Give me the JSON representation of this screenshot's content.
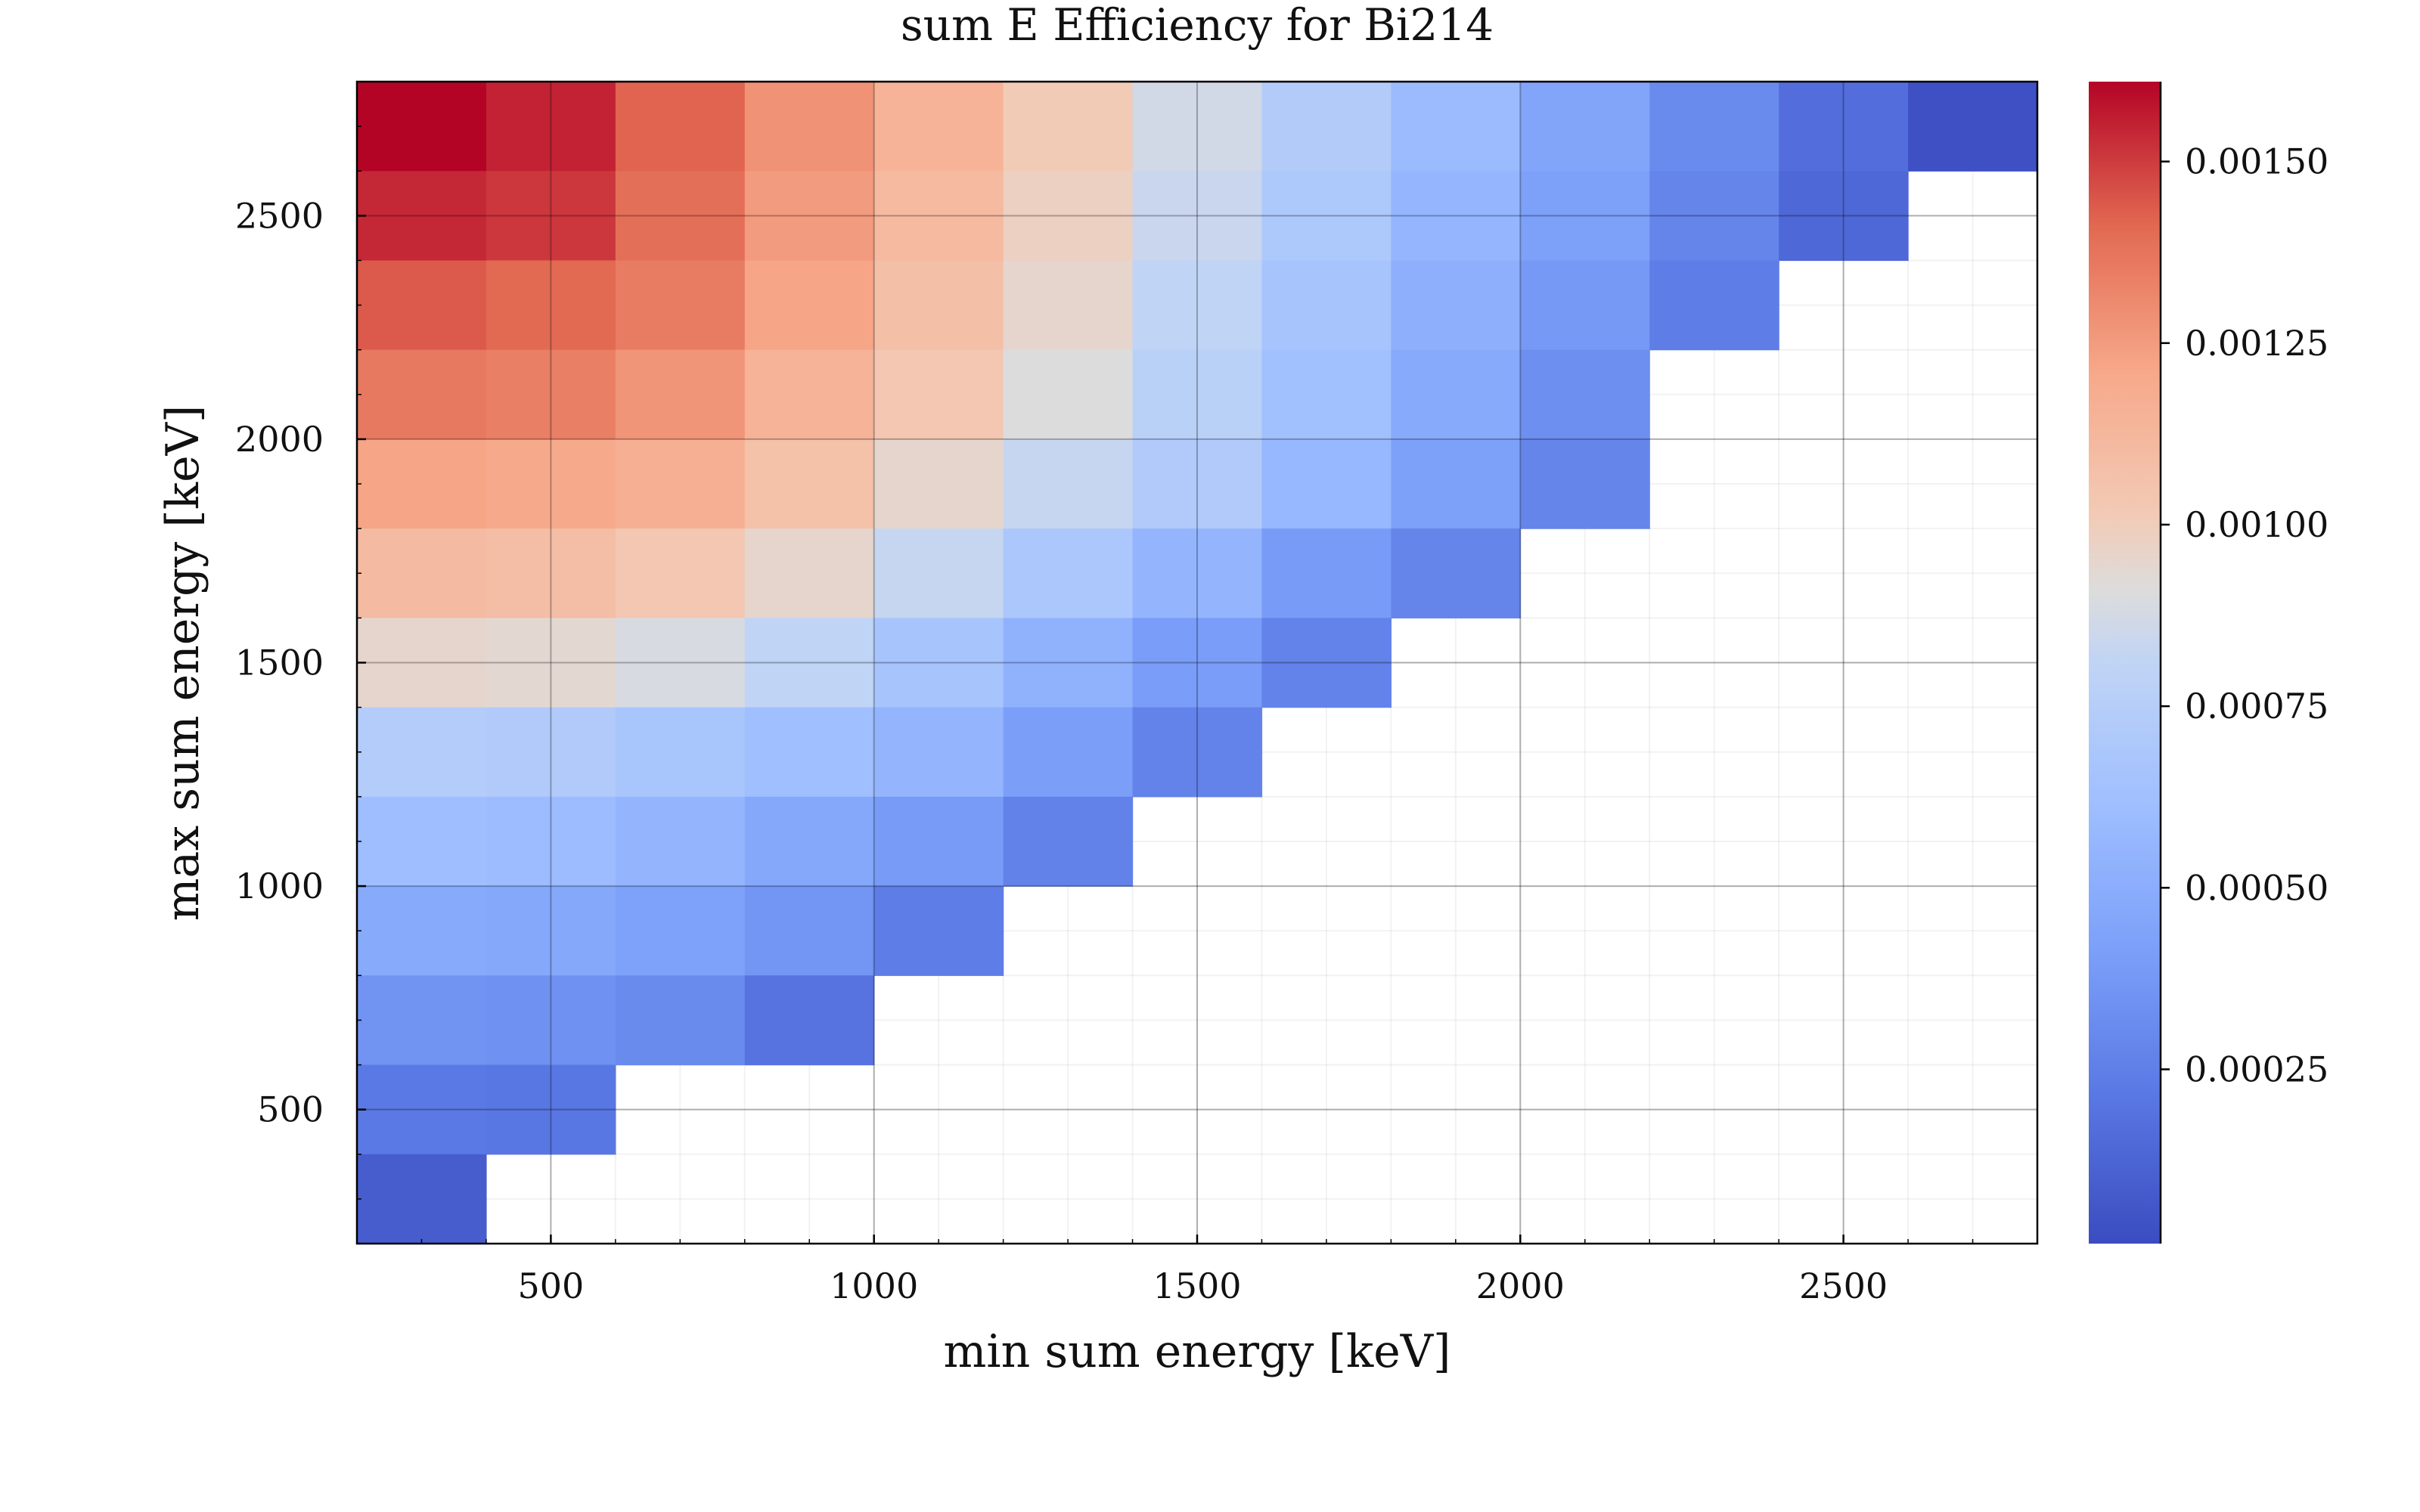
{
  "chart_data": {
    "type": "heatmap",
    "title": "sum E Efficiency for Bi214",
    "xlabel": "min sum energy [keV]",
    "ylabel": "max sum energy [keV]",
    "x_range": [
      200,
      2800
    ],
    "y_range": [
      200,
      2800
    ],
    "bin_width": 200,
    "x_ticks": [
      500,
      1000,
      1500,
      2000,
      2500
    ],
    "y_ticks": [
      500,
      1000,
      1500,
      2000,
      2500
    ],
    "grid": true,
    "colormap": "coolwarm",
    "colorbar": {
      "range": [
        1e-05,
        0.00161
      ],
      "ticks": [
        0.00025,
        0.0005,
        0.00075,
        0.001,
        0.00125,
        0.0015
      ],
      "tick_labels": [
        "0.00025",
        "0.00050",
        "0.00075",
        "0.00100",
        "0.00125",
        "0.00150"
      ],
      "position": "right"
    },
    "x_bin_starts": [
      200,
      400,
      600,
      800,
      1000,
      1200,
      1400,
      1600,
      1800,
      2000,
      2200,
      2400,
      2600
    ],
    "y_bin_starts": [
      2600,
      2400,
      2200,
      2000,
      1800,
      1600,
      1400,
      1200,
      1000,
      800,
      600,
      400,
      200
    ],
    "values": [
      [
        0.00161,
        0.00155,
        0.00142,
        0.00128,
        0.00115,
        0.00101,
        0.00087,
        0.00073,
        0.00059,
        0.00045,
        0.00031,
        0.00017,
        3e-05
      ],
      [
        0.00154,
        0.00151,
        0.00139,
        0.00125,
        0.00111,
        0.00098,
        0.00084,
        0.0007,
        0.00056,
        0.00042,
        0.00028,
        0.00014,
        null
      ],
      [
        0.00144,
        0.00141,
        0.00135,
        0.00122,
        0.00108,
        0.00095,
        0.00081,
        0.00066,
        0.00052,
        0.00038,
        0.00024,
        null,
        null
      ],
      [
        0.00136,
        0.00134,
        0.00127,
        0.00115,
        0.00103,
        0.00091,
        0.00077,
        0.00063,
        0.00048,
        0.00033,
        null,
        null,
        null
      ],
      [
        0.00122,
        0.0012,
        0.00117,
        0.00107,
        0.00095,
        0.00083,
        0.00072,
        0.00057,
        0.00042,
        0.00028,
        null,
        null,
        null
      ],
      [
        0.0011,
        0.00109,
        0.00103,
        0.00095,
        0.00083,
        0.00069,
        0.00055,
        0.00039,
        0.00028,
        null,
        null,
        null,
        null
      ],
      [
        0.00095,
        0.00094,
        0.00089,
        0.00081,
        0.00066,
        0.00053,
        0.0004,
        0.00027,
        null,
        null,
        null,
        null,
        null
      ],
      [
        0.00074,
        0.00072,
        0.00067,
        0.00062,
        0.00055,
        0.00041,
        0.00027,
        null,
        null,
        null,
        null,
        null,
        null
      ],
      [
        0.00061,
        0.0006,
        0.00055,
        0.00047,
        0.00039,
        0.00026,
        null,
        null,
        null,
        null,
        null,
        null,
        null
      ],
      [
        0.00048,
        0.00047,
        0.00043,
        0.00036,
        0.00024,
        null,
        null,
        null,
        null,
        null,
        null,
        null,
        null
      ],
      [
        0.00035,
        0.00034,
        0.00031,
        0.00019,
        null,
        null,
        null,
        null,
        null,
        null,
        null,
        null,
        null
      ],
      [
        0.00022,
        0.00021,
        null,
        null,
        null,
        null,
        null,
        null,
        null,
        null,
        null,
        null,
        null
      ],
      [
        9e-05,
        null,
        null,
        null,
        null,
        null,
        null,
        null,
        null,
        null,
        null,
        null,
        null
      ]
    ]
  }
}
